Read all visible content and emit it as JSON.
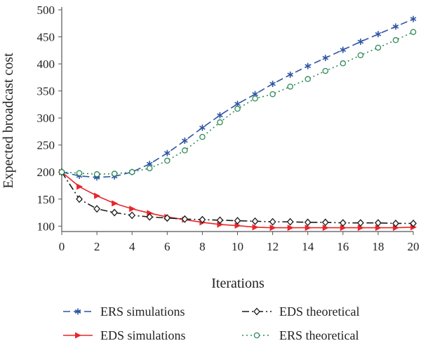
{
  "chart_data": {
    "type": "line",
    "xlabel": "Iterations",
    "ylabel": "Expected broadcast cost",
    "xlim": [
      0,
      20
    ],
    "ylim": [
      90,
      500
    ],
    "x_ticks": [
      0,
      2,
      4,
      6,
      8,
      10,
      12,
      14,
      16,
      18,
      20
    ],
    "y_ticks": [
      100,
      150,
      200,
      250,
      300,
      350,
      400,
      450,
      500
    ],
    "grid": false,
    "legend_position": "bottom",
    "x": [
      0,
      1,
      2,
      3,
      4,
      5,
      6,
      7,
      8,
      9,
      10,
      11,
      12,
      13,
      14,
      15,
      16,
      17,
      18,
      19,
      20
    ],
    "series": [
      {
        "name": "ERS simulations",
        "color": "#2f55a4",
        "line": "dashed",
        "marker": "star",
        "values": [
          200,
          193,
          190,
          192,
          200,
          215,
          235,
          258,
          282,
          305,
          326,
          344,
          363,
          380,
          396,
          411,
          426,
          441,
          455,
          469,
          483
        ]
      },
      {
        "name": "EDS simulations",
        "color": "#e8262a",
        "line": "solid",
        "marker": "triangle-right",
        "values": [
          200,
          173,
          156,
          142,
          132,
          124,
          117,
          112,
          107,
          103,
          101,
          98,
          97,
          97,
          97,
          97,
          97,
          97,
          97,
          97,
          98
        ]
      },
      {
        "name": "EDS theoretical",
        "color": "#1a1a1a",
        "line": "dashdot",
        "marker": "diamond",
        "values": [
          200,
          150,
          132,
          125,
          120,
          117,
          115,
          113,
          112,
          111,
          110,
          109,
          108,
          108,
          107,
          107,
          106,
          106,
          106,
          105,
          105
        ]
      },
      {
        "name": "ERS theoretical",
        "color": "#2e8b57",
        "line": "dotted",
        "marker": "circle",
        "values": [
          200,
          198,
          196,
          197,
          200,
          207,
          221,
          240,
          265,
          292,
          317,
          336,
          344,
          358,
          372,
          387,
          401,
          416,
          430,
          444,
          459
        ]
      }
    ]
  }
}
